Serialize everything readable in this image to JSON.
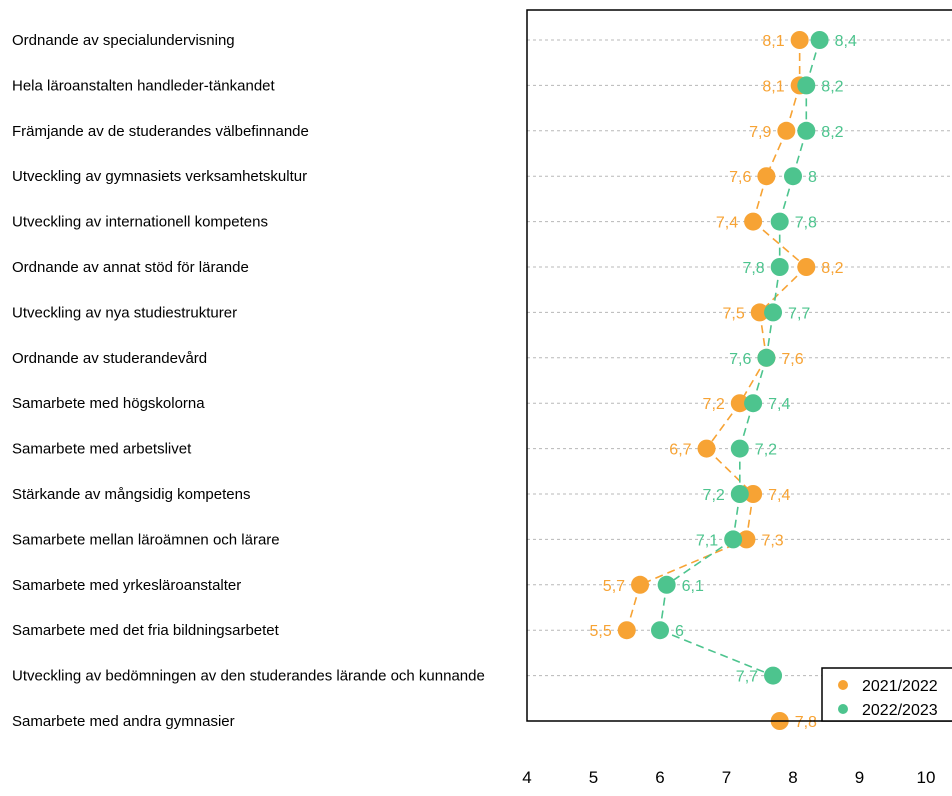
{
  "chart_data": {
    "type": "scatter",
    "categories": [
      "Ordnande av specialundervisning",
      "Hela läroanstalten handleder-tänkandet",
      "Främjande av de studerandes välbefinnande",
      "Utveckling av gymnasiets verksamhetskultur",
      "Utveckling av internationell kompetens",
      "Ordnande av annat stöd för lärande",
      "Utveckling av nya studiestrukturer",
      "Ordnande av studerandevård",
      "Samarbete med högskolorna",
      "Samarbete med arbetslivet",
      "Stärkande av mångsidig kompetens",
      "Samarbete mellan läroämnen och lärare",
      "Samarbete med yrkesläroanstalter",
      "Samarbete med det fria bildningsarbetet",
      "Utveckling av bedömningen av den studerandes lärande och kunnande",
      "Samarbete med andra gymnasier"
    ],
    "series": [
      {
        "name": "2021/2022",
        "color": "#F7A334",
        "values": [
          8.1,
          8.1,
          7.9,
          7.6,
          7.4,
          8.2,
          7.5,
          7.6,
          7.2,
          6.7,
          7.4,
          7.3,
          5.7,
          5.5,
          null,
          7.8
        ],
        "labels": [
          "8,1",
          "8,1",
          "7,9",
          "7,6",
          "7,4",
          "8,2",
          "7,5",
          "7,6",
          "7,2",
          "6,7",
          "7,4",
          "7,3",
          "5,7",
          "5,5",
          "",
          "7,8"
        ]
      },
      {
        "name": "2022/2023",
        "color": "#4DC48E",
        "values": [
          8.4,
          8.2,
          8.2,
          8.0,
          7.8,
          7.8,
          7.7,
          7.6,
          7.4,
          7.2,
          7.2,
          7.1,
          6.1,
          6.0,
          7.7,
          null
        ],
        "labels": [
          "8,4",
          "8,2",
          "8,2",
          "8",
          "7,8",
          "7,8",
          "7,7",
          "7,6",
          "7,4",
          "7,2",
          "7,2",
          "7,1",
          "6,1",
          "6",
          "7,7",
          ""
        ]
      }
    ],
    "xlim": [
      4,
      10
    ],
    "xticks": [
      "4",
      "5",
      "6",
      "7",
      "8",
      "9",
      "10"
    ],
    "grid": "horizontal dotted",
    "legend_position": "bottom-right"
  }
}
